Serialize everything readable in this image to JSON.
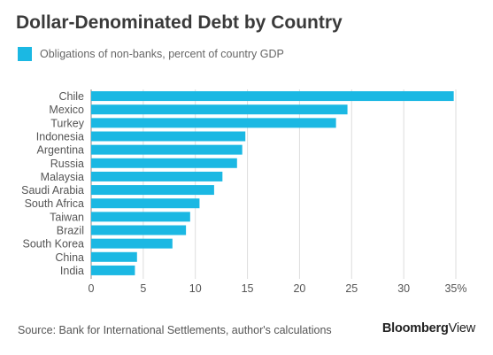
{
  "title": "Dollar-Denominated Debt by Country",
  "legend_label": "Obligations of non-banks, percent of country GDP",
  "source": "Source: Bank for International Settlements, author's calculations",
  "brand": {
    "part1": "Bloomberg",
    "part2": "View"
  },
  "colors": {
    "bar": "#1bb8e3",
    "grid": "#dddddd",
    "axis": "#888888",
    "text": "#555555"
  },
  "chart_data": {
    "type": "bar",
    "orientation": "horizontal",
    "title": "Dollar-Denominated Debt by Country",
    "categories": [
      "Chile",
      "Mexico",
      "Turkey",
      "Indonesia",
      "Argentina",
      "Russia",
      "Malaysia",
      "Saudi Arabia",
      "South Africa",
      "Taiwan",
      "Brazil",
      "South Korea",
      "China",
      "India"
    ],
    "series": [
      {
        "name": "Obligations of non-banks, percent of country GDP",
        "values": [
          34.8,
          24.6,
          23.5,
          14.8,
          14.5,
          14.0,
          12.6,
          11.8,
          10.4,
          9.5,
          9.1,
          7.8,
          4.4,
          4.2
        ]
      }
    ],
    "xlim": [
      0,
      35
    ],
    "xticks": [
      "0",
      "5",
      "10",
      "15",
      "20",
      "25",
      "30",
      "35%"
    ],
    "xtick_values": [
      0,
      5,
      10,
      15,
      20,
      25,
      30,
      35
    ],
    "grid": true,
    "legend_position": "top-left"
  }
}
